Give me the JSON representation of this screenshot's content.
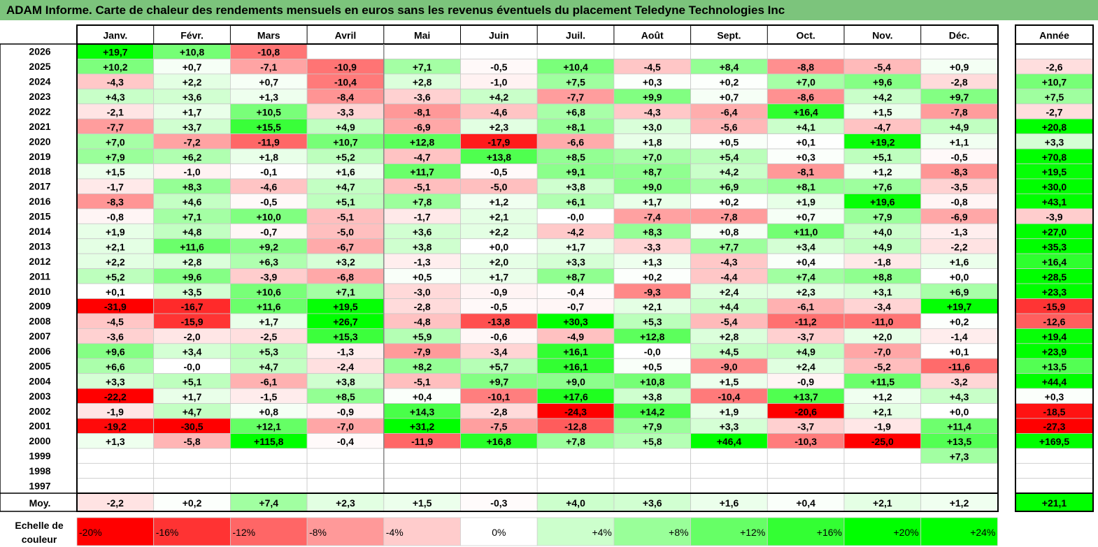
{
  "title": "ADAM Informe. Carte de chaleur des rendements mensuels en euros sans les revenus éventuels du placement Teledyne Technologies Inc",
  "chart_data": {
    "type": "heatmap",
    "title": "ADAM Informe. Carte de chaleur des rendements mensuels en euros sans les revenus éventuels du placement Teledyne Technologies Inc",
    "months": [
      "Janv.",
      "Févr.",
      "Mars",
      "Avril",
      "Mai",
      "Juin",
      "Juil.",
      "Août",
      "Sept.",
      "Oct.",
      "Nov.",
      "Déc."
    ],
    "year_header": "Année",
    "rows": [
      {
        "year": "2026",
        "values": [
          "+19,7",
          "+10,8",
          "-10,8",
          "",
          "",
          "",
          "",
          "",
          "",
          "",
          "",
          ""
        ],
        "annual": ""
      },
      {
        "year": "2025",
        "values": [
          "+10,2",
          "+0,7",
          "-7,1",
          "-10,9",
          "+7,1",
          "-0,5",
          "+10,4",
          "-4,5",
          "+8,4",
          "-8,8",
          "-5,4",
          "+0,9"
        ],
        "annual": "-2,6"
      },
      {
        "year": "2024",
        "values": [
          "-4,3",
          "+2,2",
          "+0,7",
          "-10,4",
          "+2,8",
          "-1,0",
          "+7,5",
          "+0,3",
          "+0,2",
          "+7,0",
          "+9,6",
          "-2,8"
        ],
        "annual": "+10,7"
      },
      {
        "year": "2023",
        "values": [
          "+4,3",
          "+3,6",
          "+1,3",
          "-8,4",
          "-3,6",
          "+4,2",
          "-7,7",
          "+9,9",
          "+0,7",
          "-8,6",
          "+4,2",
          "+9,7"
        ],
        "annual": "+7,5"
      },
      {
        "year": "2022",
        "values": [
          "-2,1",
          "+1,7",
          "+10,5",
          "-3,3",
          "-8,1",
          "-4,6",
          "+6,8",
          "-4,3",
          "-6,4",
          "+16,4",
          "+1,5",
          "-7,8"
        ],
        "annual": "-2,7"
      },
      {
        "year": "2021",
        "values": [
          "-7,7",
          "+3,7",
          "+15,5",
          "+4,9",
          "-6,9",
          "+2,3",
          "+8,1",
          "+3,0",
          "-5,6",
          "+4,1",
          "-4,7",
          "+4,9"
        ],
        "annual": "+20,8"
      },
      {
        "year": "2020",
        "values": [
          "+7,0",
          "-7,2",
          "-11,9",
          "+10,7",
          "+12,8",
          "-17,9",
          "-6,6",
          "+1,8",
          "+0,5",
          "+0,1",
          "+19,2",
          "+1,1"
        ],
        "annual": "+3,3"
      },
      {
        "year": "2019",
        "values": [
          "+7,9",
          "+6,2",
          "+1,8",
          "+5,2",
          "-4,7",
          "+13,8",
          "+8,5",
          "+7,0",
          "+5,4",
          "+0,3",
          "+5,1",
          "-0,5"
        ],
        "annual": "+70,8"
      },
      {
        "year": "2018",
        "values": [
          "+1,5",
          "-1,0",
          "-0,1",
          "+1,6",
          "+11,7",
          "-0,5",
          "+9,1",
          "+8,7",
          "+4,2",
          "-8,1",
          "+1,2",
          "-8,3"
        ],
        "annual": "+19,5"
      },
      {
        "year": "2017",
        "values": [
          "-1,7",
          "+8,3",
          "-4,6",
          "+4,7",
          "-5,1",
          "-5,0",
          "+3,8",
          "+9,0",
          "+6,9",
          "+8,1",
          "+7,6",
          "-3,5"
        ],
        "annual": "+30,0"
      },
      {
        "year": "2016",
        "values": [
          "-8,3",
          "+4,6",
          "-0,5",
          "+5,1",
          "+7,8",
          "+1,2",
          "+6,1",
          "+1,7",
          "+0,2",
          "+1,9",
          "+19,6",
          "-0,8"
        ],
        "annual": "+43,1"
      },
      {
        "year": "2015",
        "values": [
          "-0,8",
          "+7,1",
          "+10,0",
          "-5,1",
          "-1,7",
          "+2,1",
          "-0,0",
          "-7,4",
          "-7,8",
          "+0,7",
          "+7,9",
          "-6,9"
        ],
        "annual": "-3,9"
      },
      {
        "year": "2014",
        "values": [
          "+1,9",
          "+4,8",
          "-0,7",
          "-5,0",
          "+3,6",
          "+2,2",
          "-4,2",
          "+8,3",
          "+0,8",
          "+11,0",
          "+4,0",
          "-1,3"
        ],
        "annual": "+27,0"
      },
      {
        "year": "2013",
        "values": [
          "+2,1",
          "+11,6",
          "+9,2",
          "-6,7",
          "+3,8",
          "+0,0",
          "+1,7",
          "-3,3",
          "+7,7",
          "+3,4",
          "+4,9",
          "-2,2"
        ],
        "annual": "+35,3"
      },
      {
        "year": "2012",
        "values": [
          "+2,2",
          "+2,8",
          "+6,3",
          "+3,2",
          "-1,3",
          "+2,0",
          "+3,3",
          "+1,3",
          "-4,3",
          "+0,4",
          "-1,8",
          "+1,6"
        ],
        "annual": "+16,4"
      },
      {
        "year": "2011",
        "values": [
          "+5,2",
          "+9,6",
          "-3,9",
          "-6,8",
          "+0,5",
          "+1,7",
          "+8,7",
          "+0,2",
          "-4,4",
          "+7,4",
          "+8,8",
          "+0,0"
        ],
        "annual": "+28,5"
      },
      {
        "year": "2010",
        "values": [
          "+0,1",
          "+3,5",
          "+10,6",
          "+7,1",
          "-3,0",
          "-0,9",
          "-0,4",
          "-9,3",
          "+2,4",
          "+2,3",
          "+3,1",
          "+6,9"
        ],
        "annual": "+23,3"
      },
      {
        "year": "2009",
        "values": [
          "-31,9",
          "-16,7",
          "+11,6",
          "+19,5",
          "-2,8",
          "-0,5",
          "-0,7",
          "+2,1",
          "+4,4",
          "-6,1",
          "-3,4",
          "+19,7"
        ],
        "annual": "-15,9"
      },
      {
        "year": "2008",
        "values": [
          "-4,5",
          "-15,9",
          "+1,7",
          "+26,7",
          "-4,8",
          "-13,8",
          "+30,3",
          "+5,3",
          "-5,4",
          "-11,2",
          "-11,0",
          "+0,2"
        ],
        "annual": "-12,6"
      },
      {
        "year": "2007",
        "values": [
          "-3,6",
          "-2,0",
          "-2,5",
          "+15,3",
          "+5,9",
          "-0,6",
          "-4,9",
          "+12,8",
          "+2,8",
          "-3,7",
          "+2,0",
          "-1,4"
        ],
        "annual": "+19,4"
      },
      {
        "year": "2006",
        "values": [
          "+9,6",
          "+3,4",
          "+5,3",
          "-1,3",
          "-7,9",
          "-3,4",
          "+16,1",
          "-0,0",
          "+4,5",
          "+4,9",
          "-7,0",
          "+0,1"
        ],
        "annual": "+23,9"
      },
      {
        "year": "2005",
        "values": [
          "+6,6",
          "-0,0",
          "+4,7",
          "-2,4",
          "+8,2",
          "+5,7",
          "+16,1",
          "+0,5",
          "-9,0",
          "+2,4",
          "-5,2",
          "-11,6"
        ],
        "annual": "+13,5"
      },
      {
        "year": "2004",
        "values": [
          "+3,3",
          "+5,1",
          "-6,1",
          "+3,8",
          "-5,1",
          "+9,7",
          "+9,0",
          "+10,8",
          "+1,5",
          "-0,9",
          "+11,5",
          "-3,2"
        ],
        "annual": "+44,4"
      },
      {
        "year": "2003",
        "values": [
          "-22,2",
          "+1,7",
          "-1,5",
          "+8,5",
          "+0,4",
          "-10,1",
          "+17,6",
          "+3,8",
          "-10,4",
          "+13,7",
          "+1,2",
          "+4,3"
        ],
        "annual": "+0,3"
      },
      {
        "year": "2002",
        "values": [
          "-1,9",
          "+4,7",
          "+0,8",
          "-0,9",
          "+14,3",
          "-2,8",
          "-24,3",
          "+14,2",
          "+1,9",
          "-20,6",
          "+2,1",
          "+0,0"
        ],
        "annual": "-18,5"
      },
      {
        "year": "2001",
        "values": [
          "-19,2",
          "-30,5",
          "+12,1",
          "-7,0",
          "+31,2",
          "-7,5",
          "-12,8",
          "+7,9",
          "+3,3",
          "-3,7",
          "-1,9",
          "+11,4"
        ],
        "annual": "-27,3"
      },
      {
        "year": "2000",
        "values": [
          "+1,3",
          "-5,8",
          "+115,8",
          "-0,4",
          "-11,9",
          "+16,8",
          "+7,8",
          "+5,8",
          "+46,4",
          "-10,3",
          "-25,0",
          "+13,5"
        ],
        "annual": "+169,5"
      },
      {
        "year": "1999",
        "values": [
          "",
          "",
          "",
          "",
          "",
          "",
          "",
          "",
          "",
          "",
          "",
          "+7,3"
        ],
        "annual": ""
      },
      {
        "year": "1998",
        "values": [
          "",
          "",
          "",
          "",
          "",
          "",
          "",
          "",
          "",
          "",
          "",
          ""
        ],
        "annual": ""
      },
      {
        "year": "1997",
        "values": [
          "",
          "",
          "",
          "",
          "",
          "",
          "",
          "",
          "",
          "",
          "",
          ""
        ],
        "annual": ""
      }
    ],
    "average": {
      "label": "Moy.",
      "values": [
        "-2,2",
        "+0,2",
        "+7,4",
        "+2,3",
        "+1,5",
        "-0,3",
        "+4,0",
        "+3,6",
        "+1,6",
        "+0,4",
        "+2,1",
        "+1,2"
      ],
      "annual": "+21,1"
    },
    "scale": {
      "label": "Echelle de couleur",
      "steps": [
        {
          "label": "-20%",
          "value": -20
        },
        {
          "label": "-16%",
          "value": -16
        },
        {
          "label": "-12%",
          "value": -12
        },
        {
          "label": "-8%",
          "value": -8
        },
        {
          "label": "-4%",
          "value": -4
        },
        {
          "label": "0%",
          "value": 0
        },
        {
          "label": "+4%",
          "value": 4
        },
        {
          "label": "+8%",
          "value": 8
        },
        {
          "label": "+12%",
          "value": 12
        },
        {
          "label": "+16%",
          "value": 16
        },
        {
          "label": "+20%",
          "value": 20
        },
        {
          "label": "+24%",
          "value": 24
        }
      ]
    },
    "colors": {
      "negative_max": "#ff0000",
      "positive_max": "#00ff00",
      "neutral": "#ffffff",
      "title_bar": "#7cc47c"
    }
  }
}
